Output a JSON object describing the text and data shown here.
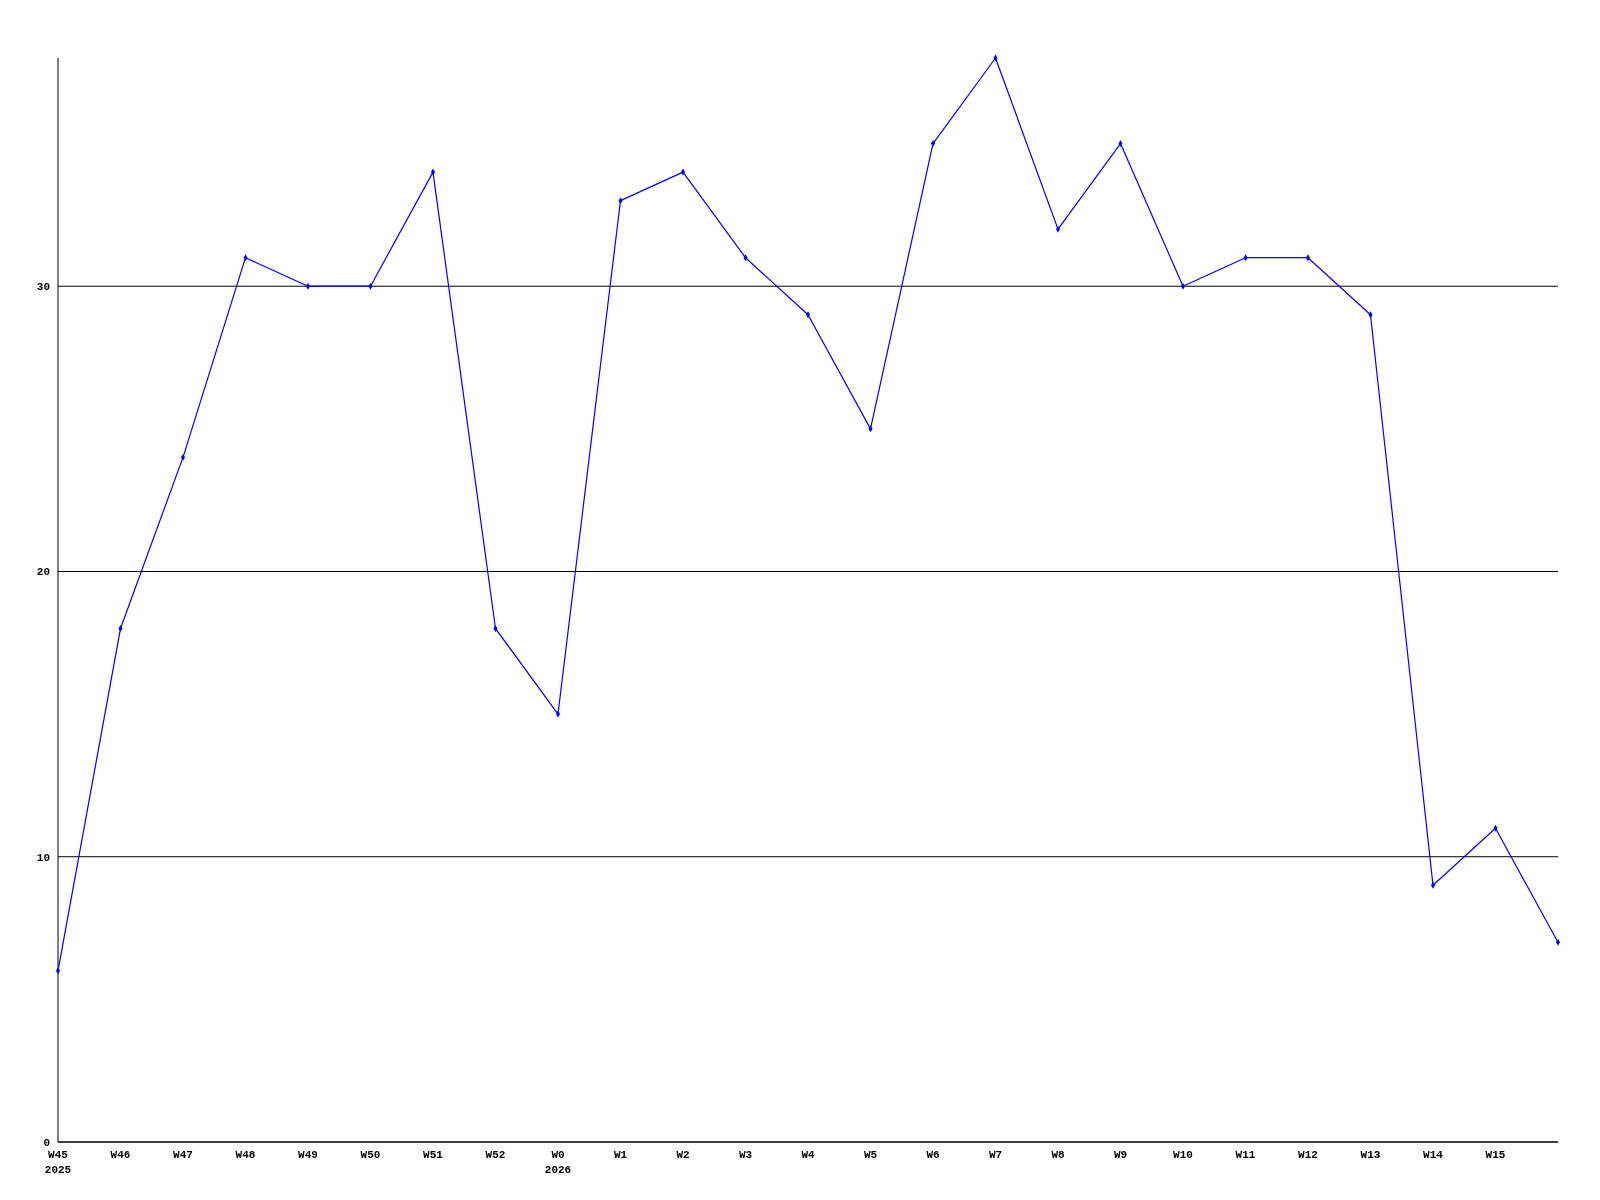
{
  "chart_data": {
    "type": "line",
    "categories": [
      "W45\n2025",
      "W46",
      "W47",
      "W48",
      "W49",
      "W50",
      "W51",
      "W52",
      "W0\n2026",
      "W1",
      "W2",
      "W3",
      "W4",
      "W5",
      "W6",
      "W7",
      "W8",
      "W9",
      "W10",
      "W11",
      "W12",
      "W13",
      "W14",
      "W15",
      null
    ],
    "series": [
      {
        "color": "#0000ff",
        "values": [
          6,
          18,
          24,
          31,
          30,
          30,
          34,
          18,
          15,
          33,
          34,
          31,
          29,
          25,
          35,
          38,
          32,
          35,
          30,
          31,
          31,
          29,
          9,
          11,
          7
        ]
      }
    ],
    "ylim": [
      0,
      38
    ],
    "yticks": [
      0,
      10,
      20,
      30
    ],
    "grid": "y",
    "marker": "diamond",
    "line_style": "solid"
  }
}
